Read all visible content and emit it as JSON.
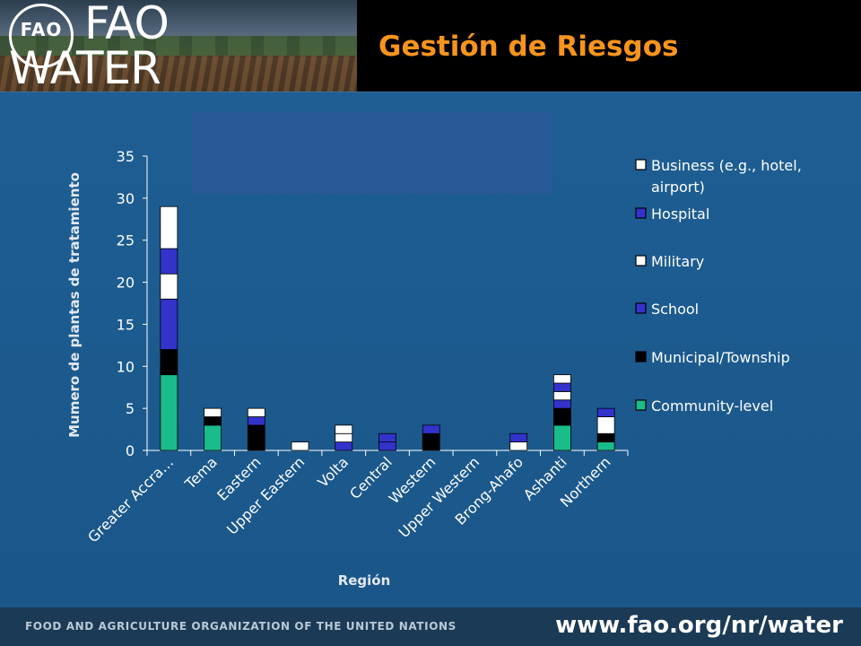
{
  "header": {
    "logo_top": "FAO",
    "logo_bottom": "WATER",
    "emblem_text": "FAO",
    "title": "Gestión de Riesgos"
  },
  "footer": {
    "org": "FOOD AND AGRICULTURE ORGANIZATION OF THE UNITED NATIONS",
    "url": "www.fao.org/nr/water"
  },
  "colors": {
    "business": "#ffffff",
    "hospital": "#3333cc",
    "military": "#ffffff",
    "school": "#3333cc",
    "municipal": "#000000",
    "community": "#1abc8c",
    "title": "#f7941d"
  },
  "chart_data": {
    "type": "bar",
    "stacked": true,
    "title": "",
    "xlabel": "Región",
    "ylabel": "Mumero de plantas de tratamiento",
    "ylim": [
      0,
      35
    ],
    "yticks": [
      0,
      5,
      10,
      15,
      20,
      25,
      30,
      35
    ],
    "legend_position": "right",
    "grid": false,
    "categories": [
      "Greater Accra…",
      "Tema",
      "Eastern",
      "Upper Eastern",
      "Volta",
      "Central",
      "Western",
      "Upper Western",
      "Brong-Ahafo",
      "Ashanti",
      "Northern"
    ],
    "series": [
      {
        "name": "Community-level",
        "key": "community",
        "values": [
          9,
          3,
          0,
          0,
          0,
          0,
          0,
          0,
          0,
          3,
          1
        ]
      },
      {
        "name": "Municipal/Township",
        "key": "municipal",
        "values": [
          3,
          1,
          3,
          0,
          0,
          0,
          2,
          0,
          0,
          2,
          1
        ]
      },
      {
        "name": "School",
        "key": "school",
        "values": [
          6,
          0,
          1,
          0,
          1,
          1,
          1,
          0,
          0,
          1,
          0
        ]
      },
      {
        "name": "Military",
        "key": "military",
        "values": [
          3,
          0,
          0,
          0,
          1,
          0,
          0,
          0,
          1,
          1,
          2
        ]
      },
      {
        "name": "Hospital",
        "key": "hospital",
        "values": [
          3,
          0,
          0,
          0,
          0,
          1,
          0,
          0,
          1,
          1,
          1
        ]
      },
      {
        "name": "Business (e.g., hotel, airport)",
        "key": "business",
        "values": [
          5,
          1,
          1,
          1,
          1,
          0,
          0,
          0,
          0,
          1,
          0
        ]
      }
    ],
    "legend": [
      {
        "key": "business",
        "lines": [
          "Business (e.g., hotel,",
          "airport)"
        ]
      },
      {
        "key": "hospital",
        "lines": [
          "Hospital"
        ]
      },
      {
        "key": "military",
        "lines": [
          "Military"
        ]
      },
      {
        "key": "school",
        "lines": [
          "School"
        ]
      },
      {
        "key": "municipal",
        "lines": [
          "Municipal/Township"
        ]
      },
      {
        "key": "community",
        "lines": [
          "Community-level"
        ]
      }
    ]
  }
}
